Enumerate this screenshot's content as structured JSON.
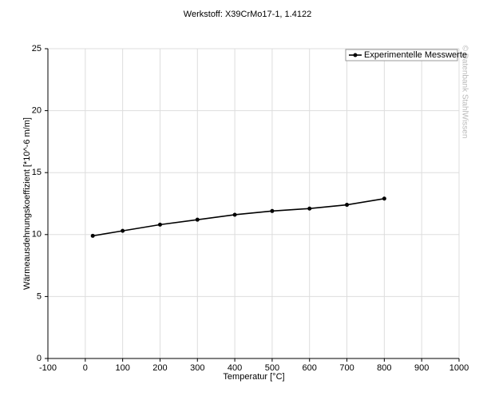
{
  "chart_data": {
    "type": "line",
    "title": "Werkstoff: X39CrMo17-1, 1.4122",
    "x_label": "Temperatur [°C]",
    "y_label": "Wärmeausdehnungskoeffizient [*10^-6 m/m]",
    "watermark": "© Datenbank StahlWissen",
    "x": [
      20,
      100,
      200,
      300,
      400,
      500,
      600,
      700,
      800
    ],
    "series": [
      {
        "name": "Experimentelle Messwerte",
        "color": "#000000",
        "values": [
          9.9,
          10.3,
          10.8,
          11.2,
          11.6,
          11.9,
          12.1,
          12.4,
          12.9
        ]
      }
    ],
    "xlim": [
      -100,
      1000
    ],
    "xticks": [
      -100,
      0,
      100,
      200,
      300,
      400,
      500,
      600,
      700,
      800,
      900,
      1000
    ],
    "ylim": [
      0,
      25
    ],
    "yticks": [
      0,
      5,
      10,
      15,
      20,
      25
    ],
    "grid": true,
    "legend_position": "top-right"
  }
}
